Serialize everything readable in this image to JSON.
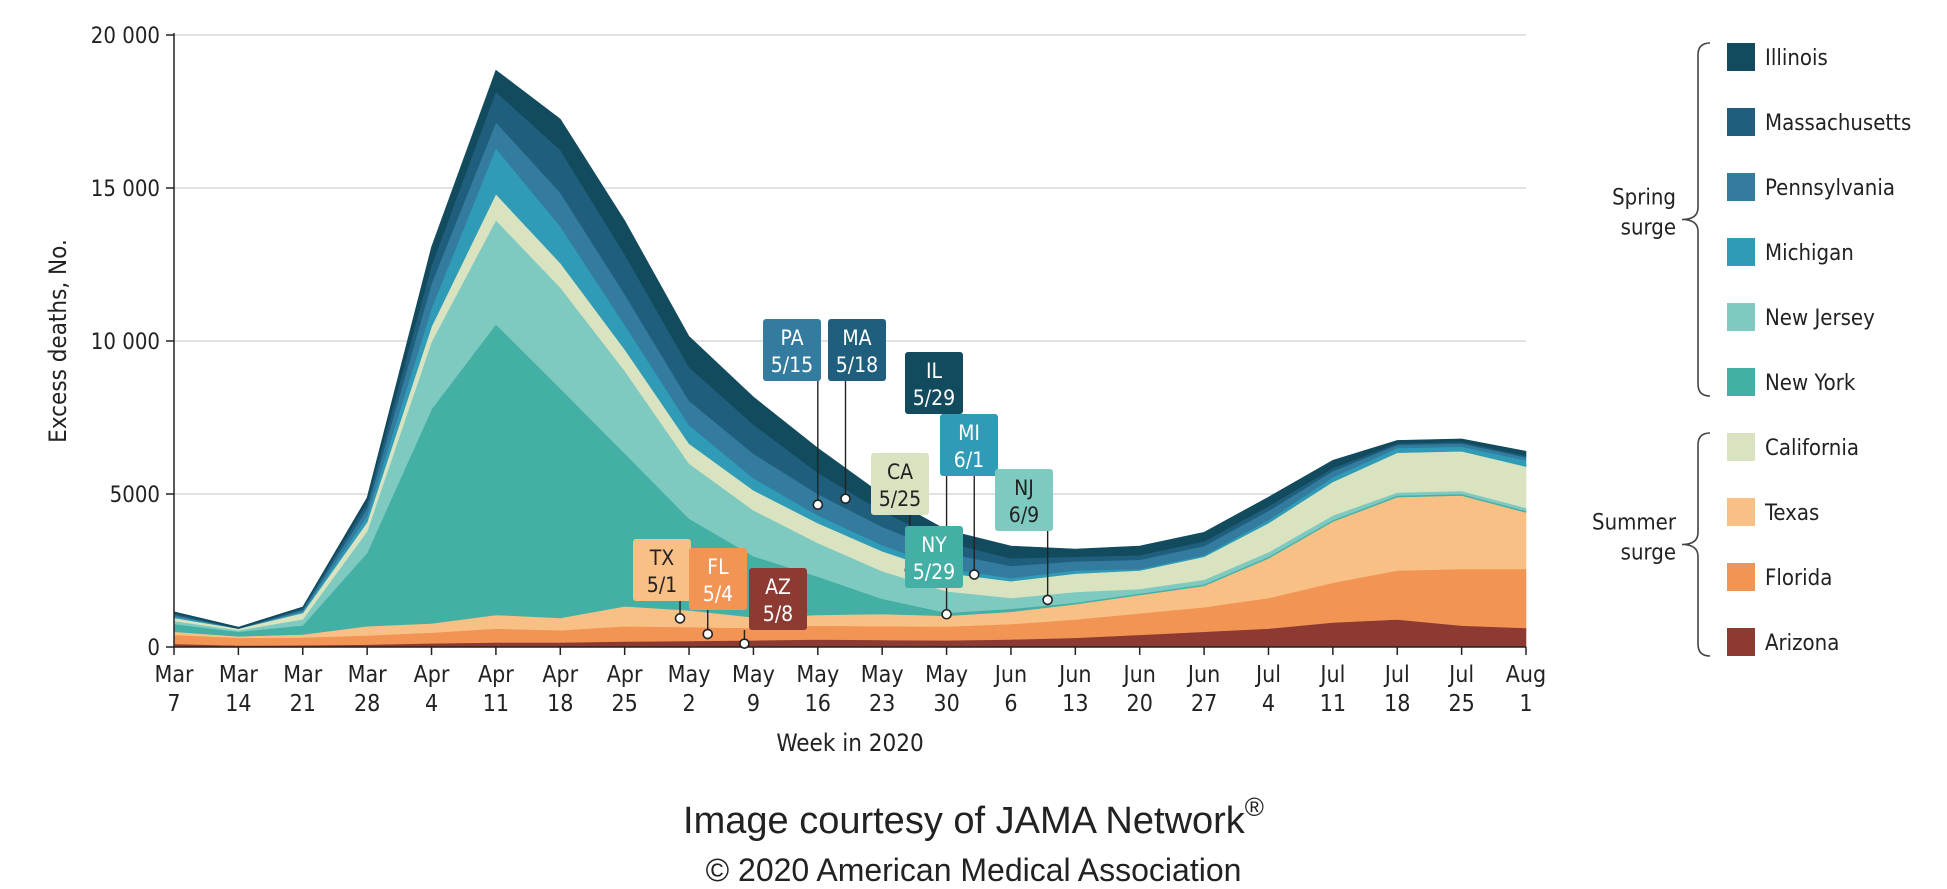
{
  "chart_data": {
    "type": "area",
    "stacked": true,
    "ylabel": "Excess deaths, No.",
    "xlabel": "Week in 2020",
    "ylim": [
      0,
      20000
    ],
    "yticks": [
      0,
      5000,
      10000,
      15000,
      20000
    ],
    "ytick_labels": [
      "0",
      "5000",
      "10 000",
      "15 000",
      "20 000"
    ],
    "grid": "horizontal",
    "x": [
      {
        "month": "Mar",
        "day": "7"
      },
      {
        "month": "Mar",
        "day": "14"
      },
      {
        "month": "Mar",
        "day": "21"
      },
      {
        "month": "Mar",
        "day": "28"
      },
      {
        "month": "Apr",
        "day": "4"
      },
      {
        "month": "Apr",
        "day": "11"
      },
      {
        "month": "Apr",
        "day": "18"
      },
      {
        "month": "Apr",
        "day": "25"
      },
      {
        "month": "May",
        "day": "2"
      },
      {
        "month": "May",
        "day": "9"
      },
      {
        "month": "May",
        "day": "16"
      },
      {
        "month": "May",
        "day": "23"
      },
      {
        "month": "May",
        "day": "30"
      },
      {
        "month": "Jun",
        "day": "6"
      },
      {
        "month": "Jun",
        "day": "13"
      },
      {
        "month": "Jun",
        "day": "20"
      },
      {
        "month": "Jun",
        "day": "27"
      },
      {
        "month": "Jul",
        "day": "4"
      },
      {
        "month": "Jul",
        "day": "11"
      },
      {
        "month": "Jul",
        "day": "18"
      },
      {
        "month": "Jul",
        "day": "25"
      },
      {
        "month": "Aug",
        "day": "1"
      }
    ],
    "series": [
      {
        "name": "Arizona",
        "color": "#8c3a32",
        "values": [
          100,
          50,
          60,
          80,
          120,
          150,
          150,
          180,
          200,
          220,
          250,
          230,
          220,
          250,
          300,
          400,
          500,
          600,
          800,
          900,
          700,
          620
        ]
      },
      {
        "name": "Florida",
        "color": "#f29454",
        "values": [
          300,
          250,
          250,
          300,
          350,
          450,
          400,
          500,
          450,
          400,
          450,
          450,
          450,
          500,
          600,
          700,
          800,
          1000,
          1300,
          1600,
          1850,
          1930
        ]
      },
      {
        "name": "Texas",
        "color": "#f9c086",
        "values": [
          100,
          50,
          100,
          300,
          300,
          450,
          400,
          650,
          550,
          350,
          350,
          400,
          350,
          400,
          500,
          600,
          700,
          1300,
          2000,
          2400,
          2400,
          1850
        ]
      },
      {
        "name": "New York",
        "color": "#44b0a5",
        "values": [
          250,
          150,
          300,
          2400,
          7000,
          9500,
          7500,
          5000,
          3000,
          2000,
          1250,
          500,
          100,
          100,
          50,
          50,
          50,
          50,
          50,
          50,
          50,
          50
        ]
      },
      {
        "name": "New Jersey",
        "color": "#7fcac0",
        "values": [
          100,
          50,
          200,
          700,
          2200,
          3400,
          3300,
          2700,
          1800,
          1500,
          1100,
          900,
          700,
          350,
          350,
          150,
          150,
          150,
          150,
          100,
          100,
          100
        ]
      },
      {
        "name": "California",
        "color": "#d9e3c0",
        "values": [
          100,
          50,
          200,
          300,
          500,
          850,
          800,
          700,
          650,
          650,
          650,
          650,
          600,
          550,
          600,
          600,
          750,
          950,
          1100,
          1300,
          1300,
          1350
        ]
      },
      {
        "name": "Michigan",
        "color": "#2f9bb7",
        "values": [
          50,
          0,
          50,
          200,
          600,
          1500,
          1200,
          800,
          600,
          400,
          250,
          200,
          150,
          100,
          100,
          50,
          50,
          100,
          150,
          150,
          150,
          200
        ]
      },
      {
        "name": "Pennsylvania",
        "color": "#337c9f",
        "values": [
          50,
          0,
          50,
          250,
          800,
          850,
          1100,
          1000,
          800,
          800,
          700,
          600,
          500,
          400,
          300,
          300,
          300,
          300,
          200,
          100,
          100,
          100
        ]
      },
      {
        "name": "Massachusetts",
        "color": "#1f5f7d",
        "values": [
          50,
          0,
          50,
          200,
          600,
          1000,
          1400,
          1300,
          1100,
          950,
          700,
          500,
          350,
          250,
          150,
          150,
          150,
          150,
          100,
          50,
          50,
          50
        ]
      },
      {
        "name": "Illinois",
        "color": "#124b5e",
        "values": [
          50,
          50,
          50,
          150,
          600,
          700,
          1000,
          1100,
          1000,
          900,
          800,
          550,
          400,
          400,
          250,
          300,
          300,
          300,
          250,
          100,
          100,
          150
        ]
      }
    ],
    "legend": {
      "placement": "right",
      "order": [
        "Illinois",
        "Massachusetts",
        "Pennsylvania",
        "Michigan",
        "New Jersey",
        "New York",
        "California",
        "Texas",
        "Florida",
        "Arizona"
      ],
      "groups": [
        {
          "label_lines": [
            "Spring",
            "surge"
          ],
          "members": [
            "Illinois",
            "Massachusetts",
            "Pennsylvania",
            "Michigan",
            "New Jersey",
            "New York"
          ]
        },
        {
          "label_lines": [
            "Summer",
            "surge"
          ],
          "members": [
            "California",
            "Texas",
            "Florida",
            "Arizona"
          ]
        }
      ]
    },
    "annotations": [
      {
        "state": "PA",
        "date": "5/15",
        "series": "Pennsylvania",
        "x_index": 10.0,
        "color": "#337c9f",
        "text_color": "#ffffff"
      },
      {
        "state": "MA",
        "date": "5/18",
        "series": "Massachusetts",
        "x_index": 10.43,
        "color": "#1f5f7d",
        "text_color": "#ffffff"
      },
      {
        "state": "IL",
        "date": "5/29",
        "series": "Illinois",
        "x_index": 12.0,
        "color": "#124b5e",
        "text_color": "#ffffff"
      },
      {
        "state": "CA",
        "date": "5/25",
        "series": "California",
        "x_index": 11.43,
        "color": "#d9e3c0",
        "text_color": "#222222"
      },
      {
        "state": "MI",
        "date": "6/1",
        "series": "Michigan",
        "x_index": 12.43,
        "color": "#2f9bb7",
        "text_color": "#ffffff"
      },
      {
        "state": "NJ",
        "date": "6/9",
        "series": "New Jersey",
        "x_index": 13.57,
        "color": "#7fcac0",
        "text_color": "#222222"
      },
      {
        "state": "NY",
        "date": "5/29",
        "series": "New York",
        "x_index": 12.0,
        "color": "#44b0a5",
        "text_color": "#ffffff"
      },
      {
        "state": "TX",
        "date": "5/1",
        "series": "Texas",
        "x_index": 7.86,
        "color": "#f9c086",
        "text_color": "#222222"
      },
      {
        "state": "FL",
        "date": "5/4",
        "series": "Florida",
        "x_index": 8.29,
        "color": "#f29454",
        "text_color": "#ffffff"
      },
      {
        "state": "AZ",
        "date": "5/8",
        "series": "Arizona",
        "x_index": 8.86,
        "color": "#8c3a32",
        "text_color": "#ffffff"
      }
    ]
  },
  "credit": {
    "line1": "Image courtesy of JAMA Network",
    "registered_mark": "®",
    "line2": "© 2020 American Medical Association"
  }
}
